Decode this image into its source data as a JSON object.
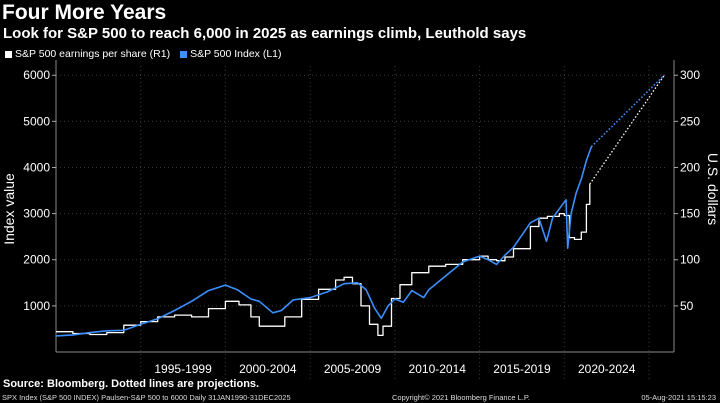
{
  "header": {
    "title": "Four More Years",
    "subtitle": "Look for S&P 500 to reach 6,000 in 2025 as earnings climb, Leuthold says"
  },
  "footer": {
    "source": "Source: Bloomberg. Dotted lines are projections.",
    "left": "SPX Index (S&P 500 INDEX) Paulsen-S&P 500 to 6000  Daily 31JAN1990-31DEC2025",
    "center": "Copyright© 2021 Bloomberg Finance L.P.",
    "right": "05-Aug-2021 15:15:23"
  },
  "chart_data": {
    "type": "line",
    "title": "Four More Years",
    "subtitle": "Look for S&P 500 to reach 6,000 in 2025 as earnings climb, Leuthold says",
    "xlim": [
      1990.0,
      2026.0
    ],
    "x_tick_labels": [
      "1995-1999",
      "2000-2004",
      "2005-2009",
      "2010-2014",
      "2015-2019",
      "2020-2024"
    ],
    "x_tick_ranges": [
      [
        1995,
        2000
      ],
      [
        2000,
        2005
      ],
      [
        2005,
        2010
      ],
      [
        2010,
        2015
      ],
      [
        2015,
        2020
      ],
      [
        2020,
        2025
      ]
    ],
    "y_left": {
      "label": "Index value",
      "lim": [
        0,
        6200
      ],
      "ticks": [
        1000,
        2000,
        3000,
        4000,
        5000,
        6000
      ]
    },
    "y_right": {
      "label": "U.S. dollars",
      "lim": [
        0,
        310
      ],
      "ticks": [
        50,
        100,
        150,
        200,
        250,
        300
      ]
    },
    "legend": "top-left",
    "grid": true,
    "series": [
      {
        "name": "S&P 500 earnings per share (R1)",
        "axis": "right",
        "color": "#ffffff",
        "x": [
          1990.0,
          1991.0,
          1992.0,
          1993.0,
          1994.0,
          1995.0,
          1996.0,
          1997.0,
          1998.0,
          1999.0,
          2000.0,
          2000.8,
          2001.5,
          2002.0,
          2002.8,
          2003.5,
          2004.5,
          2005.5,
          2006.5,
          2007.0,
          2007.5,
          2008.0,
          2008.5,
          2009.0,
          2009.3,
          2009.8,
          2010.3,
          2011.0,
          2012.0,
          2013.0,
          2014.0,
          2015.0,
          2015.5,
          2016.0,
          2016.5,
          2017.0,
          2018.0,
          2018.5,
          2019.0,
          2019.7,
          2020.0,
          2020.3,
          2020.6,
          2021.0,
          2021.3,
          2021.5
        ],
        "y": [
          22,
          20,
          19,
          21,
          29,
          33,
          38,
          40,
          38,
          47,
          55,
          51,
          38,
          28,
          28,
          38,
          57,
          68,
          78,
          81,
          74,
          50,
          30,
          18,
          28,
          58,
          73,
          86,
          93,
          95,
          100,
          104,
          100,
          99,
          103,
          112,
          136,
          145,
          147,
          150,
          148,
          124,
          122,
          130,
          160,
          182
        ]
      },
      {
        "name": "S&P 500 Index (L1)",
        "axis": "left",
        "color": "#3b8fff",
        "x": [
          1990.0,
          1991.0,
          1992.0,
          1993.0,
          1994.0,
          1995.0,
          1996.0,
          1997.0,
          1998.0,
          1999.0,
          2000.0,
          2000.7,
          2001.5,
          2002.0,
          2002.8,
          2003.3,
          2004.0,
          2005.0,
          2006.0,
          2007.0,
          2007.8,
          2008.3,
          2008.8,
          2009.2,
          2009.6,
          2010.0,
          2010.5,
          2011.0,
          2011.7,
          2012.0,
          2013.0,
          2014.0,
          2015.0,
          2015.5,
          2016.0,
          2016.5,
          2017.0,
          2018.0,
          2018.5,
          2018.95,
          2019.3,
          2019.8,
          2020.1,
          2020.2,
          2020.4,
          2020.7,
          2021.0,
          2021.3,
          2021.6
        ],
        "y": [
          350,
          370,
          420,
          460,
          470,
          600,
          720,
          900,
          1100,
          1330,
          1450,
          1350,
          1150,
          1100,
          850,
          900,
          1130,
          1180,
          1300,
          1480,
          1500,
          1350,
          950,
          730,
          1000,
          1150,
          1080,
          1330,
          1180,
          1350,
          1650,
          1950,
          2080,
          2000,
          1900,
          2100,
          2270,
          2800,
          2900,
          2400,
          2900,
          3150,
          3300,
          2250,
          3000,
          3450,
          3750,
          4150,
          4450
        ]
      },
      {
        "name": "S&P 500 earnings per share (R1) projection",
        "axis": "right",
        "color": "#ffffff",
        "dashed": true,
        "x": [
          2021.5,
          2025.9
        ],
        "y": [
          182,
          300
        ]
      },
      {
        "name": "S&P 500 Index (L1) projection",
        "axis": "left",
        "color": "#3b8fff",
        "dashed": true,
        "x": [
          2021.6,
          2025.9
        ],
        "y": [
          4450,
          6000
        ]
      }
    ]
  }
}
